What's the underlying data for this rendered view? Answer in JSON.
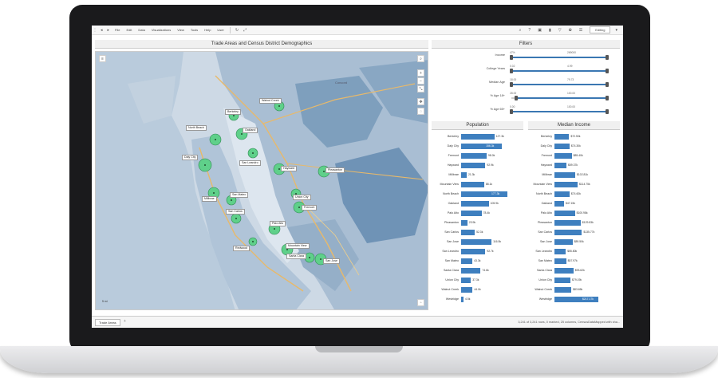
{
  "menu": {
    "items": [
      "File",
      "Edit",
      "Data",
      "Visualizations",
      "View",
      "Tools",
      "Help",
      "User"
    ],
    "mode": "Editing"
  },
  "map_panel": {
    "title": "Trade Areas and Census District Demographics",
    "scale_label": "5 mi",
    "places": [
      "Walnut Creek",
      "Berkeley",
      "Oakland",
      "North Beach",
      "Daly City",
      "San Leandro",
      "Hayward",
      "Pleasanton",
      "Millbrae",
      "San Mateo",
      "San Carlos",
      "Union City",
      "Fremont",
      "Palo Alto",
      "Redwood",
      "Mountain View",
      "Santa Clara",
      "San Jose"
    ],
    "city_label": "Concord"
  },
  "filters": {
    "title": "Filters",
    "rows": [
      {
        "label": "Income",
        "lo": "47%",
        "hi": "269000"
      },
      {
        "label": "College Years",
        "lo": "0.02",
        "hi": "4.99"
      },
      {
        "label": "Median Age",
        "lo": "18.00",
        "hi": "79.73"
      },
      {
        "label": "% Age 18+",
        "lo": "28.00",
        "hi": "100.00"
      },
      {
        "label": "% Age 65+",
        "lo": "0.00",
        "hi": "100.00"
      }
    ]
  },
  "population": {
    "title": "Population",
    "rows": [
      {
        "name": "Berkeley",
        "label": "127.3k"
      },
      {
        "name": "Daly City",
        "label": "156.3k"
      },
      {
        "name": "Fremont",
        "label": "98.0k"
      },
      {
        "name": "Hayward",
        "label": "92.9k"
      },
      {
        "name": "Millbrae",
        "label": "21.3k"
      },
      {
        "name": "Mountain View",
        "label": "88.1k"
      },
      {
        "name": "North Beach",
        "label": "177.3k"
      },
      {
        "name": "Oakland",
        "label": "105.9k"
      },
      {
        "name": "Palo Alto",
        "label": "78.4k"
      },
      {
        "name": "Pleasanton",
        "label": "23.9k"
      },
      {
        "name": "San Carlos",
        "label": "52.3k"
      },
      {
        "name": "San Jose",
        "label": "116.5k"
      },
      {
        "name": "San Leandro",
        "label": "92.7k"
      },
      {
        "name": "San Mateo",
        "label": "43.3k"
      },
      {
        "name": "Santa Clara",
        "label": "74.6k"
      },
      {
        "name": "Union City",
        "label": "37.3k"
      },
      {
        "name": "Walnut Creek",
        "label": "44.0k"
      },
      {
        "name": "Westridge",
        "label": "4.5k"
      }
    ]
  },
  "income": {
    "title": "Median Income",
    "rows": [
      {
        "name": "Berkeley",
        "label": "$72.50k"
      },
      {
        "name": "Daly City",
        "label": "$74.30k"
      },
      {
        "name": "Fremont",
        "label": "$85.40k"
      },
      {
        "name": "Hayward",
        "label": "$59.37k"
      },
      {
        "name": "Millbrae",
        "label": "$102.81k"
      },
      {
        "name": "Mountain View",
        "label": "$114.75k"
      },
      {
        "name": "North Beach",
        "label": "$74.60k"
      },
      {
        "name": "Oakland",
        "label": "$47.15k"
      },
      {
        "name": "Palo Alto",
        "label": "$100.98k"
      },
      {
        "name": "Pleasanton",
        "label": "$129.83k"
      },
      {
        "name": "San Carlos",
        "label": "$135.77k"
      },
      {
        "name": "San Jose",
        "label": "$89.50k"
      },
      {
        "name": "San Leandro",
        "label": "$55.80k"
      },
      {
        "name": "San Mateo",
        "label": "$57.97k"
      },
      {
        "name": "Santa Clara",
        "label": "$93.62k"
      },
      {
        "name": "Union City",
        "label": "$79.19k"
      },
      {
        "name": "Walnut Creek",
        "label": "$83.65k"
      },
      {
        "name": "Westridge",
        "label": "$217.17k"
      }
    ]
  },
  "chart_data": [
    {
      "type": "bar",
      "title": "Population",
      "categories": [
        "Berkeley",
        "Daly City",
        "Fremont",
        "Hayward",
        "Millbrae",
        "Mountain View",
        "North Beach",
        "Oakland",
        "Palo Alto",
        "Pleasanton",
        "San Carlos",
        "San Jose",
        "San Leandro",
        "San Mateo",
        "Santa Clara",
        "Union City",
        "Walnut Creek",
        "Westridge"
      ],
      "values": [
        127.3,
        156.3,
        98.0,
        92.9,
        21.3,
        88.1,
        177.3,
        105.9,
        78.4,
        23.9,
        52.3,
        116.5,
        92.7,
        43.3,
        74.6,
        37.3,
        44.0,
        4.5
      ],
      "orientation": "horizontal"
    },
    {
      "type": "bar",
      "title": "Median Income",
      "categories": [
        "Berkeley",
        "Daly City",
        "Fremont",
        "Hayward",
        "Millbrae",
        "Mountain View",
        "North Beach",
        "Oakland",
        "Palo Alto",
        "Pleasanton",
        "San Carlos",
        "San Jose",
        "San Leandro",
        "San Mateo",
        "Santa Clara",
        "Union City",
        "Walnut Creek",
        "Westridge"
      ],
      "values": [
        72.5,
        74.3,
        85.4,
        59.37,
        102.81,
        114.75,
        74.6,
        47.15,
        100.98,
        129.83,
        135.77,
        89.5,
        55.8,
        57.97,
        93.62,
        79.19,
        83.65,
        217.17
      ],
      "orientation": "horizontal"
    }
  ],
  "status": {
    "tab": "Trade Areas",
    "text": "3,241 of 3,241 rows, 0 marked, 25 columns, CensusDataMapped with sha..."
  },
  "colors": {
    "bar": "#3e7fbf",
    "zone": "#5fd08a"
  }
}
